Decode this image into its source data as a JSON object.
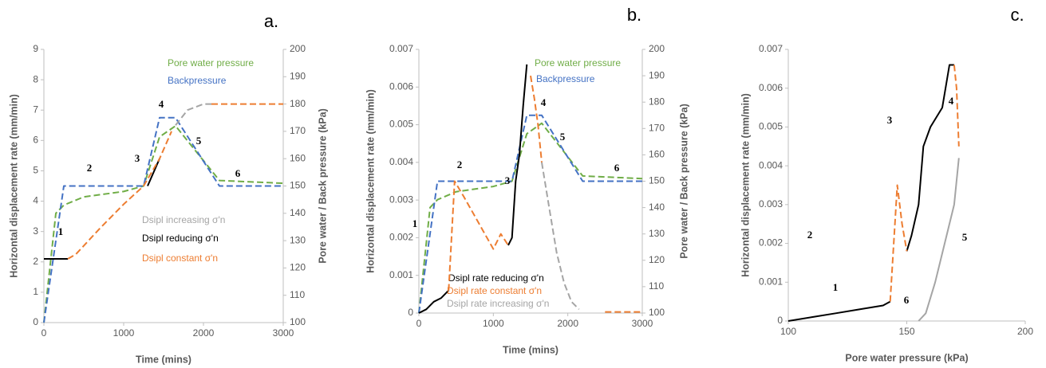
{
  "chart_data": [
    {
      "type": "line",
      "label": "a.",
      "xlabel": "Time (mins)",
      "ylabel": "Horizontal displacement rate (mm/min)",
      "y2label": "Pore water / Back pressure (kPa)",
      "xlim": [
        0,
        3000
      ],
      "xticks": [
        0,
        1000,
        2000,
        3000
      ],
      "ylim": [
        0,
        9
      ],
      "yticks": [
        0,
        1,
        2,
        3,
        4,
        5,
        6,
        7,
        8,
        9
      ],
      "y2lim": [
        100,
        200
      ],
      "y2ticks": [
        100,
        110,
        120,
        130,
        140,
        150,
        160,
        170,
        180,
        190,
        200
      ],
      "annotations": [
        "1",
        "2",
        "3",
        "4",
        "5",
        "6"
      ],
      "series": [
        {
          "name": "Pore water pressure",
          "color": "#70ad47",
          "axis": "y2",
          "dashed": true,
          "x": [
            0,
            150,
            250,
            500,
            1000,
            1250,
            1450,
            1600,
            1650,
            2200,
            3000
          ],
          "values": [
            100,
            140,
            143,
            146,
            148,
            150,
            168,
            171,
            172,
            152,
            151
          ]
        },
        {
          "name": "Backpressure",
          "color": "#4472c4",
          "axis": "y2",
          "dashed": true,
          "x": [
            0,
            250,
            1250,
            1450,
            1650,
            2200,
            3000
          ],
          "values": [
            100,
            150,
            150,
            175,
            175,
            150,
            150
          ]
        },
        {
          "name": "Dsipl increasing σ'n",
          "color": "#a5a5a5",
          "dashed": true,
          "x": [
            1650,
            1800,
            2000,
            2100
          ],
          "values": [
            6.5,
            7.0,
            7.2,
            7.2
          ]
        },
        {
          "name": "Dsipl reducing σ'n",
          "color": "#000000",
          "x": [
            0,
            300,
            1250,
            1300,
            1450
          ],
          "values": [
            2.1,
            2.1,
            null,
            4.5,
            5.4
          ]
        },
        {
          "name": "Dsipl constant σ'n",
          "color": "#ed7d31",
          "dashed": true,
          "x": [
            300,
            400,
            700,
            1000,
            1250,
            1450,
            1600,
            1650,
            2100,
            3000
          ],
          "values": [
            2.1,
            2.25,
            3.1,
            3.9,
            4.5,
            5.4,
            6.3,
            null,
            7.2,
            7.2
          ]
        }
      ]
    },
    {
      "type": "line",
      "label": "b.",
      "xlabel": "Time (mins)",
      "ylabel": "Horizontal displacement rate (mm/min)",
      "y2label": "Pore water / Back pressure (kPa)",
      "xlim": [
        0,
        3000
      ],
      "xticks": [
        0,
        1000,
        2000,
        3000
      ],
      "ylim": [
        0,
        0.007
      ],
      "yticks": [
        0,
        0.001,
        0.002,
        0.003,
        0.004,
        0.005,
        0.006,
        0.007
      ],
      "y2lim": [
        100,
        200
      ],
      "y2ticks": [
        100,
        110,
        120,
        130,
        140,
        150,
        160,
        170,
        180,
        190,
        200
      ],
      "annotations": [
        "1",
        "2",
        "3",
        "4",
        "5",
        "6"
      ],
      "series": [
        {
          "name": "Pore water pressure",
          "color": "#70ad47",
          "axis": "y2",
          "dashed": true,
          "x": [
            0,
            150,
            250,
            500,
            1000,
            1250,
            1450,
            1600,
            1650,
            2200,
            3000
          ],
          "values": [
            100,
            140,
            143,
            146,
            148,
            150,
            168,
            171,
            172,
            152,
            151
          ]
        },
        {
          "name": "Backpressure",
          "color": "#4472c4",
          "axis": "y2",
          "dashed": true,
          "x": [
            0,
            250,
            1250,
            1450,
            1650,
            2200,
            3000
          ],
          "values": [
            100,
            150,
            150,
            175,
            175,
            150,
            150
          ]
        },
        {
          "name": "Dsipl rate reducing σ'n",
          "color": "#000000",
          "x": [
            0,
            100,
            200,
            300,
            400,
            1150,
            1200,
            1250,
            1300,
            1350,
            1400,
            1450
          ],
          "values": [
            0,
            0.0001,
            0.0003,
            0.0004,
            0.0006,
            null,
            0.0018,
            0.002,
            0.0035,
            0.0042,
            0.0055,
            0.0066
          ]
        },
        {
          "name": "Dsipl rate constant σ'n",
          "color": "#ed7d31",
          "dashed": true,
          "x": [
            400,
            480,
            600,
            800,
            1000,
            1100,
            1200,
            1450,
            1500,
            1550,
            1600,
            1650,
            2100,
            2500,
            3000
          ],
          "values": [
            0.0006,
            0.0035,
            0.0031,
            0.0024,
            0.0017,
            0.0021,
            0.0018,
            null,
            0.0063,
            0.0057,
            0.005,
            0.004,
            null,
            3e-05,
            3e-05
          ]
        },
        {
          "name": "Dsipl rate increasing σ'n",
          "color": "#a5a5a5",
          "dashed": true,
          "x": [
            1650,
            1750,
            1850,
            1950,
            2050,
            2150
          ],
          "values": [
            0.004,
            0.0028,
            0.0016,
            0.0008,
            0.0003,
            0.0001
          ]
        }
      ]
    },
    {
      "type": "line",
      "label": "c.",
      "xlabel": "Pore water pressure (kPa)",
      "ylabel": "Horizontal displacement rate (mm/min)",
      "xlim": [
        100,
        200
      ],
      "xticks": [
        100,
        150,
        200
      ],
      "ylim": [
        0,
        0.007
      ],
      "yticks": [
        0,
        0.001,
        0.002,
        0.003,
        0.004,
        0.005,
        0.006,
        0.007
      ],
      "annotations": [
        "1",
        "2",
        "3",
        "4",
        "5",
        "6"
      ],
      "series": [
        {
          "color": "#000000",
          "x": [
            100,
            110,
            120,
            130,
            140,
            143,
            149,
            150,
            152,
            155,
            157,
            160,
            165,
            168,
            170
          ],
          "values": [
            0,
            0.0001,
            0.0002,
            0.0003,
            0.0004,
            0.0005,
            null,
            0.0018,
            0.0022,
            0.003,
            0.0045,
            0.005,
            0.0055,
            0.0066,
            0.0066
          ]
        },
        {
          "color": "#ed7d31",
          "dashed": true,
          "x": [
            143,
            146,
            148,
            150,
            169,
            170,
            171,
            172
          ],
          "values": [
            0.0005,
            0.0035,
            0.0025,
            0.0018,
            null,
            0.0066,
            0.006,
            0.0045
          ]
        },
        {
          "color": "#a5a5a5",
          "x": [
            155,
            158,
            162,
            166,
            170,
            172
          ],
          "values": [
            0,
            0.0002,
            0.001,
            0.002,
            0.003,
            0.0042
          ]
        }
      ]
    }
  ]
}
